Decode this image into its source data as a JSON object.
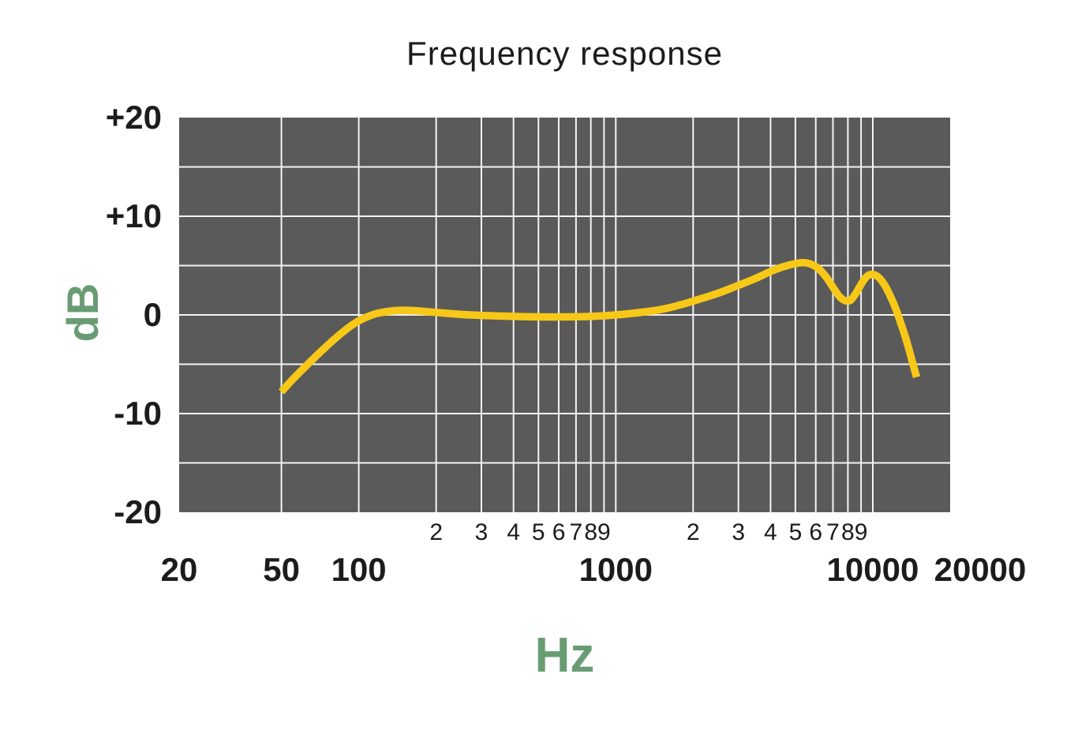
{
  "colors": {
    "plot_background": "#595a59",
    "grid_line": "#f4f4f4",
    "curve_yellow": "#f7c817",
    "axis_label_green": "#699c73",
    "text": "#1c1c1c",
    "page_background": "#ffffff"
  },
  "chart_data": {
    "type": "line",
    "title": "Frequency response",
    "xlabel": "Hz",
    "ylabel": "dB",
    "x_scale": "log",
    "xlim": [
      20,
      20000
    ],
    "ylim": [
      -20,
      20
    ],
    "grid": {
      "x_values": [
        50,
        100,
        200,
        300,
        400,
        500,
        600,
        700,
        800,
        900,
        1000,
        2000,
        3000,
        4000,
        5000,
        6000,
        7000,
        8000,
        9000,
        10000
      ],
      "y_values": [
        -15,
        -10,
        -5,
        0,
        5,
        10,
        15
      ]
    },
    "y_ticks": [
      {
        "label": "+20",
        "value": 20
      },
      {
        "label": "+10",
        "value": 10
      },
      {
        "label": "0",
        "value": 0
      },
      {
        "label": "-10",
        "value": -10
      },
      {
        "label": "-20",
        "value": -20
      }
    ],
    "x_major_ticks": [
      {
        "label": "20",
        "value": 20
      },
      {
        "label": "50",
        "value": 50
      },
      {
        "label": "100",
        "value": 100
      },
      {
        "label": "1000",
        "value": 1000
      },
      {
        "label": "10000",
        "value": 10000
      },
      {
        "label": "20000",
        "value": 20000
      }
    ],
    "x_minor_ticks": [
      {
        "label": "2",
        "value": 200
      },
      {
        "label": "3",
        "value": 300
      },
      {
        "label": "4",
        "value": 400
      },
      {
        "label": "5",
        "value": 500
      },
      {
        "label": "6",
        "value": 600
      },
      {
        "label": "7",
        "value": 700
      },
      {
        "label": "8",
        "value": 800
      },
      {
        "label": "9",
        "value": 900
      },
      {
        "label": "2",
        "value": 2000
      },
      {
        "label": "3",
        "value": 3000
      },
      {
        "label": "4",
        "value": 4000
      },
      {
        "label": "5",
        "value": 5000
      },
      {
        "label": "6",
        "value": 6000
      },
      {
        "label": "7",
        "value": 7000
      },
      {
        "label": "8",
        "value": 8000
      },
      {
        "label": "9",
        "value": 9000
      }
    ],
    "series": [
      {
        "name": "frequency-response",
        "color": "#f7c817",
        "points": [
          [
            50,
            -7.8
          ],
          [
            55,
            -6.6
          ],
          [
            60,
            -5.6
          ],
          [
            70,
            -3.9
          ],
          [
            80,
            -2.5
          ],
          [
            90,
            -1.4
          ],
          [
            100,
            -0.6
          ],
          [
            110,
            -0.1
          ],
          [
            120,
            0.2
          ],
          [
            140,
            0.45
          ],
          [
            160,
            0.45
          ],
          [
            200,
            0.25
          ],
          [
            250,
            0.05
          ],
          [
            300,
            -0.05
          ],
          [
            400,
            -0.15
          ],
          [
            500,
            -0.2
          ],
          [
            650,
            -0.2
          ],
          [
            800,
            -0.15
          ],
          [
            1000,
            0.0
          ],
          [
            1200,
            0.2
          ],
          [
            1500,
            0.55
          ],
          [
            1800,
            1.05
          ],
          [
            2000,
            1.4
          ],
          [
            2500,
            2.2
          ],
          [
            3000,
            3.0
          ],
          [
            3500,
            3.7
          ],
          [
            4000,
            4.4
          ],
          [
            4500,
            4.9
          ],
          [
            5000,
            5.2
          ],
          [
            5400,
            5.3
          ],
          [
            5800,
            5.1
          ],
          [
            6200,
            4.6
          ],
          [
            6600,
            3.8
          ],
          [
            7000,
            2.8
          ],
          [
            7400,
            1.9
          ],
          [
            7800,
            1.45
          ],
          [
            8200,
            1.5
          ],
          [
            8600,
            2.2
          ],
          [
            9000,
            3.1
          ],
          [
            9400,
            3.8
          ],
          [
            9800,
            4.1
          ],
          [
            10300,
            4.0
          ],
          [
            10800,
            3.5
          ],
          [
            11300,
            2.7
          ],
          [
            11800,
            1.7
          ],
          [
            12300,
            0.6
          ],
          [
            12800,
            -0.7
          ],
          [
            13300,
            -2.0
          ],
          [
            13800,
            -3.4
          ],
          [
            14300,
            -4.9
          ],
          [
            14800,
            -6.3
          ]
        ]
      }
    ]
  }
}
